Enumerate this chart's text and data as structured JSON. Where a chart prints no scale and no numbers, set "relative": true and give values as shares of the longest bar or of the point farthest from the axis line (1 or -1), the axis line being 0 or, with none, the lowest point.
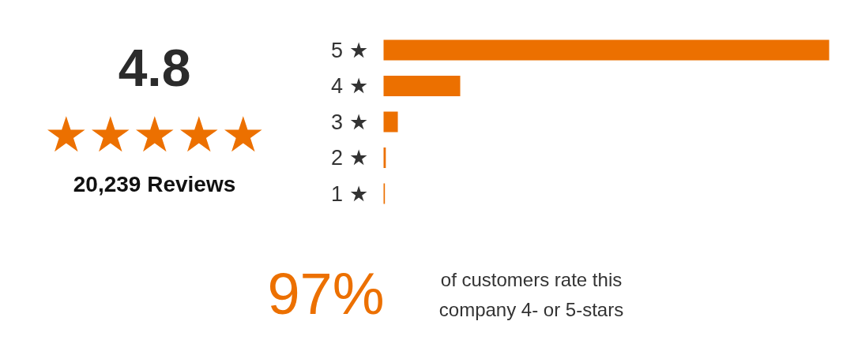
{
  "chart_data": {
    "type": "bar",
    "orientation": "horizontal",
    "relative": true,
    "categories": [
      "5 ★",
      "4 ★",
      "3 ★",
      "2 ★",
      "1 ★"
    ],
    "values": [
      1,
      0.172,
      0.032,
      0.005,
      0.003
    ],
    "color": "#ec7000",
    "grid": false,
    "annotations": [
      "4.8",
      "★★★★★",
      "20,239 Reviews",
      "97%",
      "of customers rate this company 4- or 5-stars"
    ]
  }
}
